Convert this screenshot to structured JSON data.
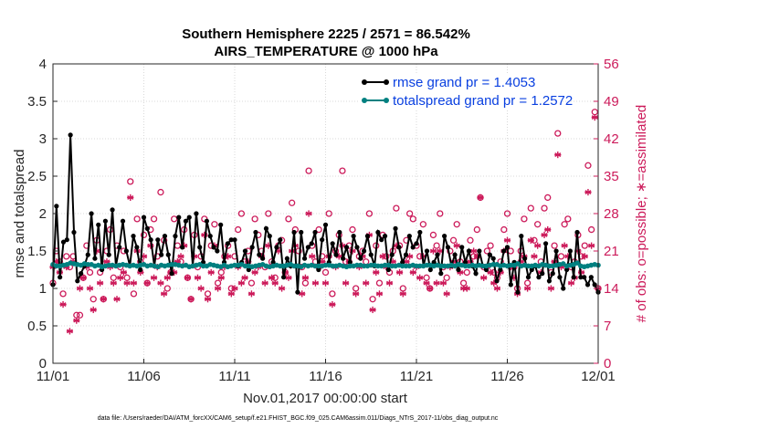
{
  "chart_data": {
    "type": "line",
    "title_line1": "Southern Hemisphere 2225 / 2571 = 86.542%",
    "title_line2": "AIRS_TEMPERATURE @ 1000 hPa",
    "xlabel": "Nov.01,2017 00:00:00 start",
    "ylabel": "rmse and totalspread",
    "ylabel_right": "# of obs: o=possible; ∗=assimilated",
    "footnote": "data file: /Users/raeder/DAI/ATM_forcXX/CAM6_setup/f.e21.FHIST_BGC.f09_025.CAM6assim.011/Diags_NTrS_2017-11/obs_diag_output.nc",
    "xlim": [
      0,
      30
    ],
    "ylim": [
      0,
      4
    ],
    "ylim_right": [
      0,
      56
    ],
    "x_ticks": [
      0,
      5,
      10,
      15,
      20,
      25,
      30
    ],
    "x_tick_labels": [
      "11/01",
      "11/06",
      "11/11",
      "11/16",
      "11/21",
      "11/26",
      "12/01"
    ],
    "y_ticks": [
      0,
      0.5,
      1,
      1.5,
      2,
      2.5,
      3,
      3.5,
      4
    ],
    "y_tick_labels": [
      "0",
      "0.5",
      "1",
      "1.5",
      "2",
      "2.5",
      "3",
      "3.5",
      "4"
    ],
    "y_right_ticks": [
      0,
      7,
      14,
      21,
      28,
      35,
      42,
      49,
      56
    ],
    "y_right_tick_labels": [
      "0",
      "7",
      "14",
      "21",
      "28",
      "35",
      "42",
      "49",
      "56"
    ],
    "series": [
      {
        "name": "rmse",
        "legend": "rmse grand pr = 1.4053",
        "color": "#000000",
        "marker": "star",
        "values": [
          1.05,
          2.1,
          1.15,
          1.62,
          1.65,
          3.05,
          1.75,
          1.1,
          1.2,
          1.3,
          1.45,
          2.0,
          1.4,
          1.85,
          1.25,
          1.9,
          1.45,
          2.05,
          1.3,
          1.55,
          1.9,
          1.5,
          1.3,
          1.7,
          1.55,
          1.25,
          1.95,
          1.8,
          1.65,
          1.3,
          1.65,
          1.45,
          1.7,
          1.45,
          1.2,
          1.7,
          1.95,
          1.55,
          1.9,
          1.95,
          1.3,
          2.0,
          1.55,
          1.35,
          1.9,
          1.7,
          1.55,
          1.5,
          1.85,
          1.35,
          1.6,
          1.65,
          1.65,
          1.3,
          1.35,
          1.5,
          1.25,
          1.55,
          1.75,
          1.45,
          1.4,
          1.8,
          1.7,
          1.35,
          1.55,
          1.65,
          1.15,
          1.4,
          1.3,
          1.75,
          0.95,
          1.75,
          1.4,
          1.55,
          1.6,
          1.75,
          1.25,
          1.65,
          1.85,
          1.35,
          1.6,
          1.45,
          1.75,
          1.4,
          1.55,
          1.35,
          1.7,
          1.55,
          1.4,
          1.5,
          1.7,
          1.45,
          1.3,
          1.75,
          1.65,
          1.7,
          1.25,
          1.45,
          1.8,
          1.55,
          1.35,
          1.45,
          1.7,
          1.55,
          1.6,
          1.75,
          1.3,
          1.5,
          1.25,
          1.35,
          1.45,
          1.2,
          1.7,
          1.55,
          1.3,
          1.45,
          1.25,
          1.55,
          1.35,
          1.5,
          1.3,
          1.2,
          1.5,
          1.3,
          1.25,
          1.45,
          1.4,
          1.1,
          1.25,
          1.5,
          1.55,
          1.05,
          1.35,
          0.95,
          1.7,
          1.4,
          1.15,
          1.25,
          1.3,
          1.15,
          1.2,
          1.6,
          1.1,
          1.2,
          1.5,
          1.15,
          1.0,
          1.25,
          1.5,
          1.15,
          1.75,
          1.15,
          1.15,
          1.05,
          1.15,
          1.05,
          0.95
        ]
      },
      {
        "name": "totalspread",
        "legend": "totalspread grand pr = 1.2572",
        "color": "#008080",
        "marker": "dot",
        "values": [
          1.32,
          1.3,
          1.3,
          1.31,
          1.32,
          1.34,
          1.33,
          1.32,
          1.31,
          1.33,
          1.32,
          1.32,
          1.3,
          1.31,
          1.29,
          1.3,
          1.31,
          1.31,
          1.3,
          1.31,
          1.32,
          1.31,
          1.3,
          1.31,
          1.3,
          1.31,
          1.32,
          1.3,
          1.31,
          1.3,
          1.29,
          1.31,
          1.3,
          1.31,
          1.32,
          1.32,
          1.31,
          1.3,
          1.31,
          1.29,
          1.3,
          1.31,
          1.32,
          1.3,
          1.3,
          1.32,
          1.31,
          1.3,
          1.29,
          1.31,
          1.29,
          1.3,
          1.31,
          1.31,
          1.32,
          1.3,
          1.3,
          1.29,
          1.3,
          1.31,
          1.32,
          1.3,
          1.29,
          1.3,
          1.31,
          1.3,
          1.3,
          1.31,
          1.32,
          1.3,
          1.3,
          1.29,
          1.31,
          1.3,
          1.31,
          1.3,
          1.3,
          1.3,
          1.31,
          1.31,
          1.3,
          1.3,
          1.31,
          1.3,
          1.29,
          1.3,
          1.3,
          1.31,
          1.31,
          1.3,
          1.3,
          1.31,
          1.31,
          1.3,
          1.3,
          1.31,
          1.31,
          1.3,
          1.3,
          1.31,
          1.3,
          1.3,
          1.3,
          1.31,
          1.3,
          1.3,
          1.3,
          1.31,
          1.31,
          1.3,
          1.31,
          1.3,
          1.3,
          1.3,
          1.31,
          1.3,
          1.32,
          1.31,
          1.3,
          1.3,
          1.31,
          1.3,
          1.31,
          1.3,
          1.3,
          1.31,
          1.32,
          1.32,
          1.3,
          1.31,
          1.3,
          1.31,
          1.31,
          1.33,
          1.3,
          1.31,
          1.3,
          1.3,
          1.31,
          1.3,
          1.32,
          1.31,
          1.3,
          1.3,
          1.31,
          1.32,
          1.33,
          1.3,
          1.31,
          1.32,
          1.34,
          1.3,
          1.29,
          1.3,
          1.31,
          1.32,
          1.31
        ]
      },
      {
        "name": "obs possible",
        "color": "#cc1a5a",
        "marker": "circle",
        "axis": "right",
        "values": [
          15,
          21,
          19,
          13,
          20,
          18,
          20,
          9,
          9,
          16,
          22,
          17,
          12,
          23,
          17,
          12,
          21,
          25,
          16,
          22,
          18,
          21,
          16,
          34,
          13,
          27,
          19,
          24,
          15,
          25,
          27,
          20,
          32,
          23,
          14,
          17,
          27,
          22,
          19,
          25,
          16,
          12,
          24,
          18,
          20,
          27,
          13,
          22,
          26,
          15,
          17,
          20,
          22,
          14,
          20,
          25,
          28,
          19,
          21,
          15,
          27,
          24,
          21,
          18,
          28,
          19,
          16,
          22,
          23,
          17,
          27,
          30,
          25,
          21,
          18,
          15,
          36,
          22,
          19,
          25,
          20,
          17,
          28,
          13,
          21,
          24,
          36,
          19,
          22,
          25,
          14,
          20,
          21,
          19,
          28,
          12,
          22,
          15,
          24,
          20,
          17,
          21,
          29,
          22,
          14,
          23,
          28,
          27,
          22,
          20,
          26,
          16,
          14,
          24,
          22,
          28,
          18,
          16,
          21,
          23,
          26,
          19,
          15,
          17,
          23,
          20,
          25,
          31,
          18,
          21,
          22,
          17,
          16,
          19,
          25,
          28,
          21,
          18,
          14,
          21,
          27,
          15,
          29,
          23,
          26,
          19,
          29,
          31,
          17,
          22,
          43,
          20,
          26,
          27,
          18,
          19,
          24,
          20,
          22,
          37,
          25,
          47,
          14
        ]
      },
      {
        "name": "obs assimilated",
        "color": "#cc1a5a",
        "marker": "asterisk",
        "axis": "right",
        "values": [
          18,
          19,
          17,
          11,
          18,
          6,
          19,
          8,
          14,
          16,
          18,
          14,
          10,
          21,
          15,
          12,
          19,
          18,
          15,
          12,
          16,
          17,
          15,
          31,
          15,
          21,
          17,
          20,
          15,
          22,
          16,
          18,
          15,
          13,
          16,
          17,
          17,
          19,
          20,
          22,
          16,
          12,
          20,
          16,
          14,
          24,
          12,
          17,
          22,
          14,
          16,
          18,
          20,
          13,
          14,
          18,
          15,
          16,
          19,
          13,
          17,
          18,
          20,
          15,
          22,
          16,
          15,
          21,
          14,
          17,
          16,
          21,
          22,
          18,
          13,
          16,
          28,
          20,
          15,
          18,
          19,
          15,
          20,
          11,
          18,
          20,
          22,
          15,
          19,
          21,
          13,
          18,
          20,
          15,
          24,
          10,
          17,
          13,
          20,
          18,
          15,
          19,
          22,
          17,
          13,
          19,
          20,
          17,
          18,
          16,
          20,
          15,
          14,
          21,
          15,
          21,
          15,
          13,
          18,
          19,
          22,
          17,
          14,
          14,
          19,
          21,
          20,
          31,
          16,
          18,
          17,
          15,
          14,
          17,
          21,
          23,
          18,
          16,
          13,
          19,
          20,
          14,
          23,
          20,
          22,
          17,
          24,
          25,
          14,
          19,
          39,
          18,
          22,
          20,
          15,
          16,
          21,
          17,
          20,
          32,
          22,
          46,
          14
        ]
      }
    ]
  }
}
